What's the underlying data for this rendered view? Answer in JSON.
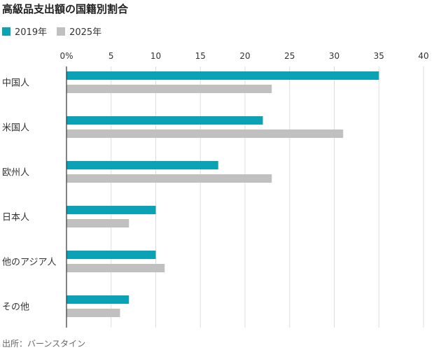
{
  "title": "高級品支出額の国籍別割合",
  "source": "出所：バーンスタイン",
  "colors": {
    "series_2019": "#0aa2b4",
    "series_2025": "#c0c0c0",
    "grid": "#dddddd",
    "axis": "#333333",
    "text": "#333333"
  },
  "chart_data": {
    "type": "bar",
    "orientation": "horizontal",
    "title": "高級品支出額の国籍別割合",
    "xlabel": "",
    "ylabel": "",
    "xlim": [
      0,
      40
    ],
    "x_ticks": [
      0,
      5,
      10,
      15,
      20,
      25,
      30,
      35,
      40
    ],
    "x_tick_labels": [
      "0%",
      "5",
      "10",
      "15",
      "20",
      "25",
      "30",
      "35",
      "40"
    ],
    "grid": true,
    "legend_position": "top-left",
    "categories": [
      "中国人",
      "米国人",
      "欧州人",
      "日本人",
      "他のアジア人",
      "その他"
    ],
    "series": [
      {
        "name": "2019年",
        "color": "#0aa2b4",
        "values": [
          35,
          22,
          17,
          10,
          10,
          7
        ]
      },
      {
        "name": "2025年",
        "color": "#c0c0c0",
        "values": [
          23,
          31,
          23,
          7,
          11,
          6
        ]
      }
    ]
  }
}
